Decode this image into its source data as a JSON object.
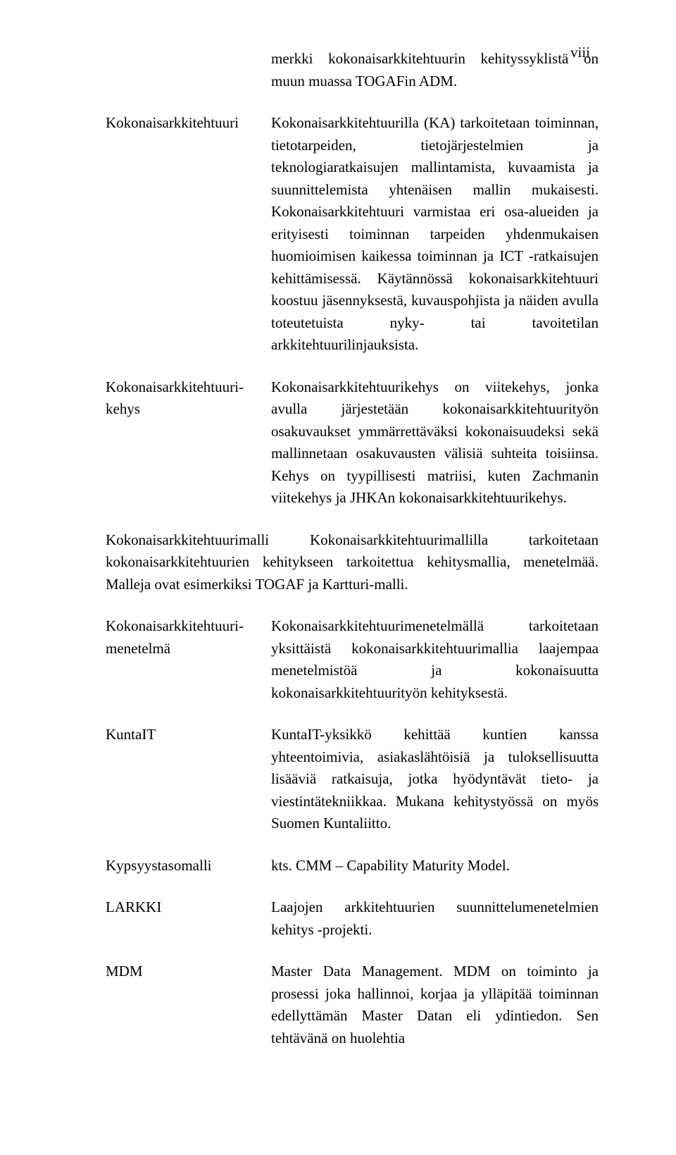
{
  "pageNumber": "viii",
  "intro": "merkki kokonaisarkkitehtuurin kehityssyklistä on muun muassa TOGAFin ADM.",
  "entries": [
    {
      "term": "Kokonaisarkkitehtuuri",
      "definition": "Kokonaisarkkitehtuurilla (KA) tarkoitetaan toiminnan, tietotarpeiden, tietojärjestelmien ja teknologiaratkaisujen mallintamista, kuvaamista ja suunnittelemista yhtenäisen mallin mukaisesti. Kokonaisarkkitehtuuri varmistaa eri osa-alueiden ja erityisesti toiminnan tarpeiden yhdenmukaisen huomioimisen kaikessa toiminnan ja ICT -ratkaisujen kehittämisessä. Käytännössä kokonaisarkkitehtuuri koostuu jäsennyksestä, kuvauspohjista ja näiden avulla toteutetuista nyky- tai tavoitetilan arkkitehtuurilinjauksista."
    },
    {
      "term": "Kokonaisarkkitehtuuri-kehys",
      "definition": "Kokonaisarkkitehtuurikehys on viitekehys, jonka avulla järjestetään kokonaisarkkitehtuurityön osakuvaukset ymmärrettäväksi kokonaisuudeksi sekä mallinnetaan osakuvausten välisiä suhteita toisiinsa. Kehys on tyypillisesti matriisi, kuten Zachmanin viitekehys ja JHKAn kokonaisarkkitehtuurikehys."
    }
  ],
  "fullwidth": "Kokonaisarkkitehtuurimalli Kokonaisarkkitehtuurimallilla tarkoitetaan kokonaisarkkitehtuurien kehitykseen tarkoitettua kehitysmallia, menetelmää. Malleja ovat esimerkiksi TOGAF ja Kartturi-malli.",
  "entries2": [
    {
      "term": "Kokonaisarkkitehtuuri-menetelmä",
      "definition": "Kokonaisarkkitehtuurimenetelmällä tarkoitetaan yksittäistä kokonaisarkkitehtuurimallia laajempaa menetelmistöä ja kokonaisuutta kokonaisarkkitehtuurityön kehityksestä."
    },
    {
      "term": "KuntaIT",
      "definition": "KuntaIT-yksikkö kehittää kuntien kanssa yhteentoimivia, asiakaslähtöisiä ja tuloksellisuutta lisääviä ratkaisuja, jotka hyödyntävät tieto- ja viestintätekniikkaa. Mukana kehitystyössä on myös Suomen Kuntaliitto."
    },
    {
      "term": "Kypsyystasomalli",
      "definition": "kts. CMM – Capability Maturity Model."
    },
    {
      "term": "LARKKI",
      "definition": "Laajojen arkkitehtuurien suunnittelumenetelmien kehitys -projekti."
    },
    {
      "term": "MDM",
      "definition": "Master Data Management. MDM on toiminto ja prosessi joka hallinnoi, korjaa ja ylläpitää toiminnan edellyttämän Master Datan eli ydintiedon. Sen tehtävänä on huolehtia"
    }
  ]
}
